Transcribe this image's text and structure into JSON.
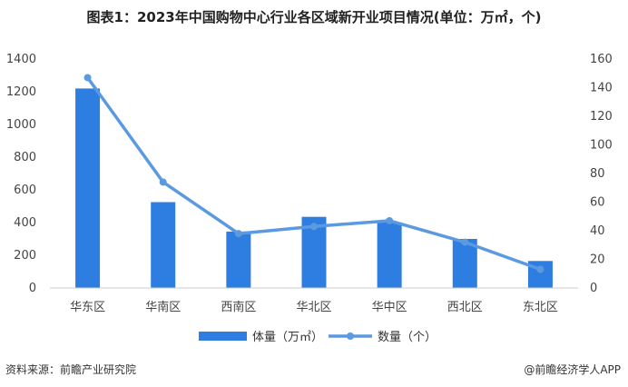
{
  "title": "图表1：2023年中国购物中心行业各区域新开业项目情况(单位：万㎡，个)",
  "footer": {
    "source": "资料来源：前瞻产业研究院",
    "brand": "@前瞻经济学人APP"
  },
  "colors": {
    "bar": "#2e7de1",
    "line": "#5b9ae0",
    "grid_axis": "#cccccc"
  },
  "chart_data": {
    "type": "bar",
    "categories": [
      "华东区",
      "华南区",
      "西南区",
      "华北区",
      "华中区",
      "西北区",
      "东北区"
    ],
    "series": [
      {
        "name": "体量（万㎡）",
        "type": "bar",
        "axis": "left",
        "values": [
          1220,
          525,
          345,
          435,
          400,
          300,
          165
        ]
      },
      {
        "name": "数量（个）",
        "type": "line",
        "axis": "right",
        "values": [
          147,
          74,
          38,
          43,
          47,
          32,
          13
        ]
      }
    ],
    "y_left": {
      "lim": [
        0,
        1400
      ],
      "ticks": [
        "0",
        "200",
        "400",
        "600",
        "800",
        "1000",
        "1200",
        "1400"
      ]
    },
    "y_right": {
      "lim": [
        0,
        160
      ],
      "ticks": [
        "0",
        "20",
        "40",
        "60",
        "80",
        "100",
        "120",
        "140",
        "160"
      ]
    },
    "legend_position": "bottom-center",
    "grid": false
  }
}
